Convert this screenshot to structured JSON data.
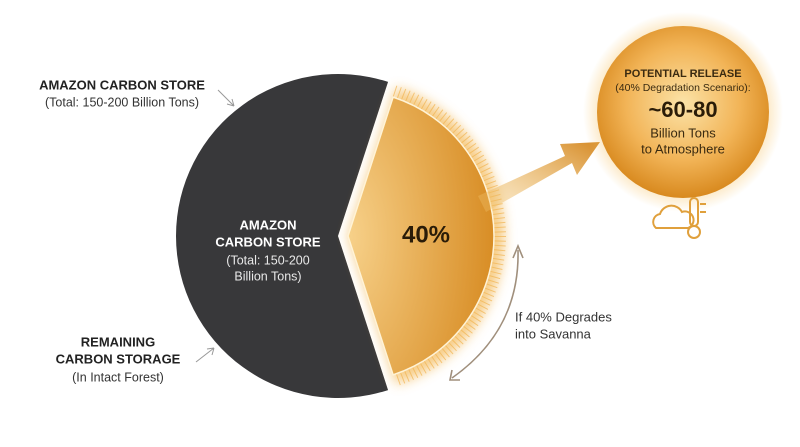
{
  "callout_top": {
    "title": "AMAZON CARBON STORE",
    "note": "(Total: 150-200 Billion Tons)"
  },
  "pie": {
    "values": [
      60,
      40
    ],
    "colors": [
      "#38383a",
      "#e6a03a"
    ],
    "value_label": "40%",
    "center_title": [
      "AMAZON",
      "CARBON STORE"
    ],
    "center_note": [
      "(Total: 150-200",
      "Billion Tons)"
    ]
  },
  "callout_bottom": {
    "title": [
      "REMAINING",
      "CARBON STORAGE"
    ],
    "note": "(In Intact Forest)"
  },
  "arc_label": [
    "If 40% Degrades",
    "into Savanna"
  ],
  "release": {
    "title": "POTENTIAL RELEASE",
    "note": "(40% Degradation Scenario):",
    "amount": "~60-80",
    "unit": [
      "Billion Tons",
      "to Atmosphere"
    ]
  }
}
